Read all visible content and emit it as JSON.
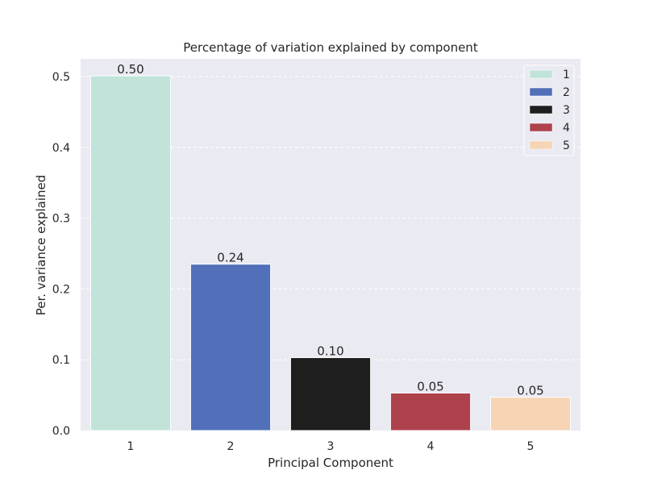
{
  "chart_data": {
    "type": "bar",
    "title": "Percentage of variation explained by component",
    "xlabel": "Principal Component",
    "ylabel": "Per. variance explained",
    "categories": [
      "1",
      "2",
      "3",
      "4",
      "5"
    ],
    "values": [
      0.501,
      0.235,
      0.103,
      0.053,
      0.047
    ],
    "value_labels": [
      "0.50",
      "0.24",
      "0.10",
      "0.05",
      "0.05"
    ],
    "colors": [
      "#c1e3d9",
      "#5270b9",
      "#1e1e1e",
      "#ad424d",
      "#f6d4b4"
    ],
    "ylim": [
      0,
      0.525
    ],
    "yticks": [
      0.0,
      0.1,
      0.2,
      0.3,
      0.4,
      0.5
    ],
    "ytick_labels": [
      "0.0",
      "0.1",
      "0.2",
      "0.3",
      "0.4",
      "0.5"
    ],
    "grid": "y-dashed",
    "legend": {
      "placement": "top-right",
      "entries": [
        "1",
        "2",
        "3",
        "4",
        "5"
      ]
    },
    "background": "#eaeaf2"
  }
}
